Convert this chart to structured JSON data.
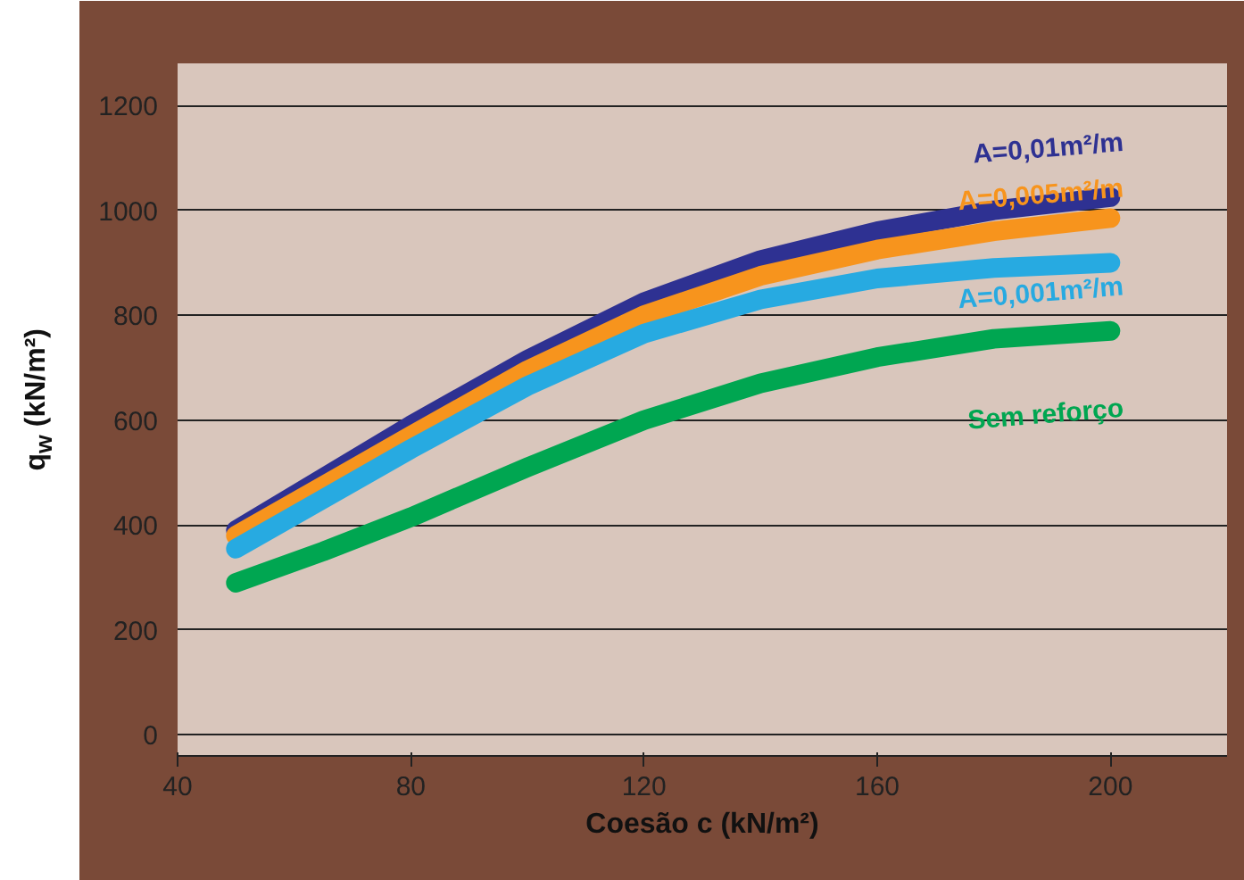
{
  "chart_data": {
    "type": "line",
    "xlabel": "Coesão c (kN/m²)",
    "ylabel": "q$_{w}$ (kN/m²)",
    "xlim": [
      40,
      220
    ],
    "ylim": [
      -40,
      1280
    ],
    "xticks": [
      40,
      80,
      120,
      160,
      200
    ],
    "yticks": [
      0,
      200,
      400,
      600,
      800,
      1000,
      1200
    ],
    "grid": "y",
    "line_style": "solid",
    "x": [
      50,
      65,
      80,
      100,
      120,
      140,
      160,
      180,
      200
    ],
    "series": [
      {
        "name": "A=0,01m²/m",
        "color": "#2e3192",
        "values": [
          390,
          490,
          590,
          715,
          825,
          905,
          960,
          1000,
          1025
        ]
      },
      {
        "name": "A=0,005m²/m",
        "color": "#f7941d",
        "values": [
          380,
          475,
          570,
          695,
          800,
          875,
          925,
          960,
          985
        ]
      },
      {
        "name": "A=0,001m²/m",
        "color": "#27aae1",
        "values": [
          355,
          450,
          545,
          665,
          765,
          830,
          870,
          890,
          900
        ]
      },
      {
        "name": "Sem reforço",
        "color": "#00a651",
        "values": [
          290,
          350,
          415,
          510,
          600,
          670,
          720,
          755,
          770
        ]
      }
    ]
  }
}
